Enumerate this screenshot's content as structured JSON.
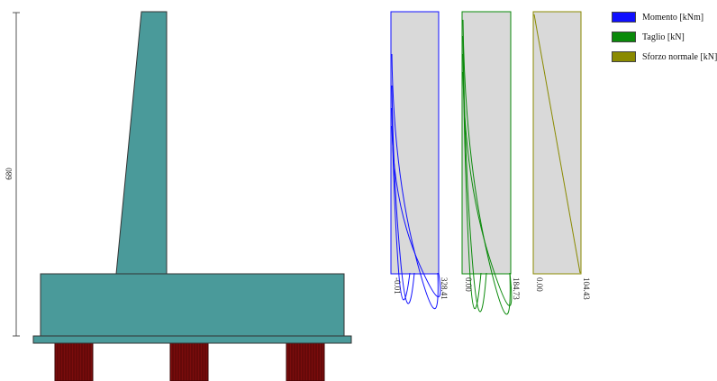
{
  "dimension": {
    "height_label": "680"
  },
  "legend": {
    "items": [
      {
        "label": "Momento [kNm]",
        "color": "#1010ff"
      },
      {
        "label": "Taglio [kN]",
        "color": "#0a8a0a"
      },
      {
        "label": "Sforzo normale [kN]",
        "color": "#8a8a00"
      }
    ]
  },
  "colors": {
    "wall": "#4a9a9a",
    "pile": "#7a0c0c",
    "panel": "#d9d9d9",
    "moment": "#1010ff",
    "shear": "#0a8a0a",
    "normal": "#8a8a00"
  },
  "diagrams": {
    "moment": {
      "min_label": "-0.01",
      "max_label": "328.41"
    },
    "shear": {
      "min_label": "0.00",
      "max_label": "184.73"
    },
    "normal": {
      "min_label": "0.00",
      "max_label": "104.43"
    }
  }
}
